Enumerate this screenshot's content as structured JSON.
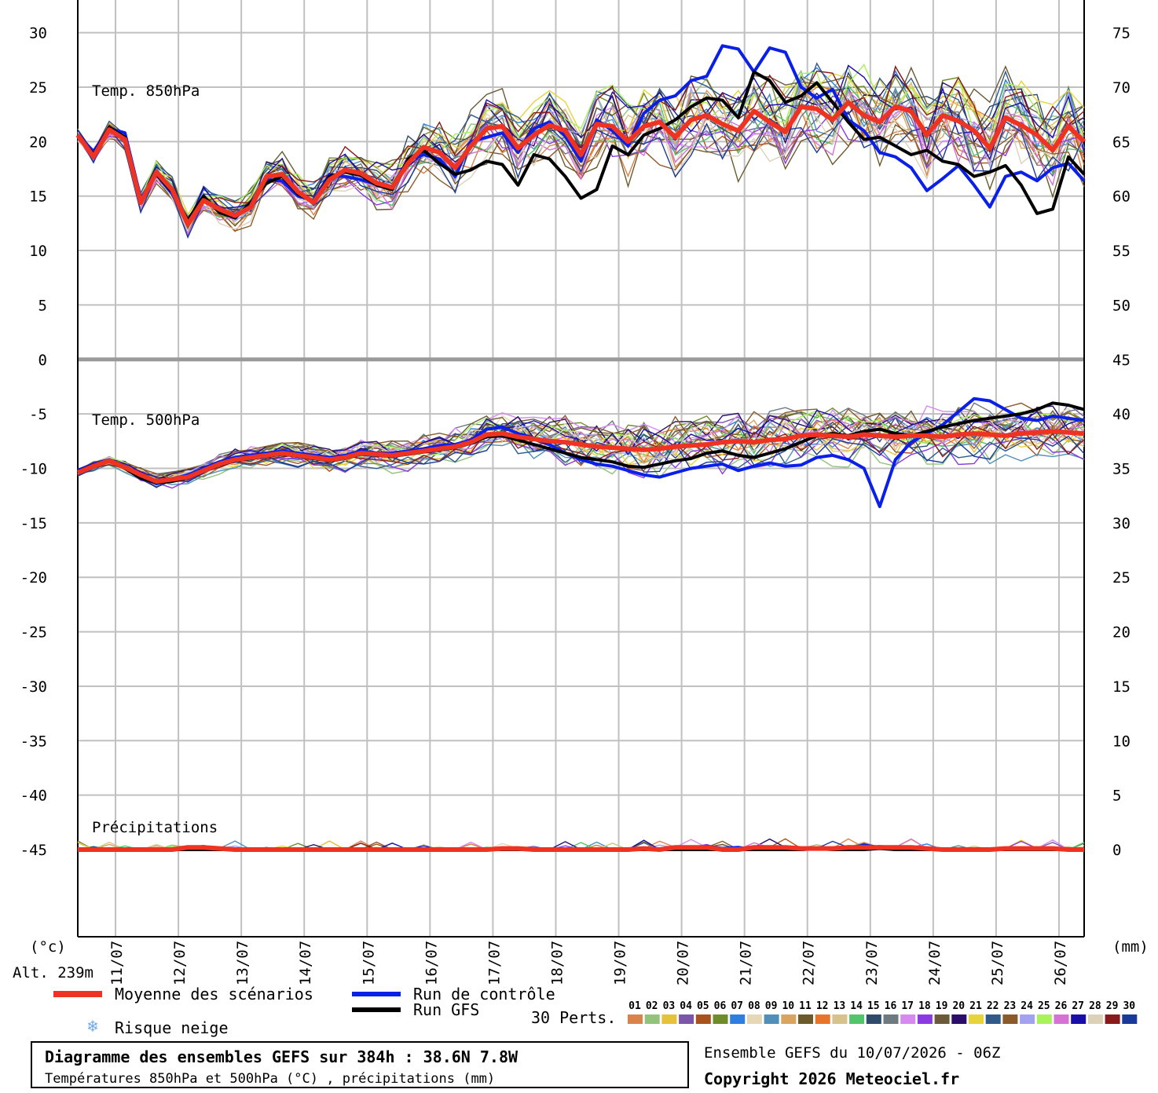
{
  "colors": {
    "mean": "#ee3322",
    "control": "#0a1fe8",
    "gfs": "#000000",
    "grid": "#c0c0c0",
    "grid_major": "#9a9a9a",
    "members": [
      "#d9824a",
      "#93c27a",
      "#e6c23a",
      "#7a55a8",
      "#a8531e",
      "#6f8c2a",
      "#2f7de0",
      "#e6d8b6",
      "#4f8fb8",
      "#d9a45f",
      "#6b5a2a",
      "#e8742a",
      "#d6c28a",
      "#52c46a",
      "#2f4a6a",
      "#6e7a80",
      "#d68aef",
      "#8a3ae0",
      "#6b5a3a",
      "#2a0e6a",
      "#e8d43a",
      "#2f5a8a",
      "#8a5a2a",
      "#a2a2f0",
      "#a8f25a",
      "#d672d6",
      "#1a0ea8",
      "#dcd2ba",
      "#8a1a1a",
      "#1a3a9a"
    ]
  },
  "chart_data": {
    "type": "line",
    "x_tick_labels": [
      "11/07",
      "12/07",
      "13/07",
      "14/07",
      "15/07",
      "16/07",
      "17/07",
      "18/07",
      "19/07",
      "20/07",
      "21/07",
      "22/07",
      "23/07",
      "24/07",
      "25/07",
      "26/07"
    ],
    "left_axis_unit": "(°c)",
    "right_axis_unit": "(mm)",
    "left_ticks": [
      30,
      25,
      20,
      15,
      10,
      5,
      0,
      -5,
      -10,
      -15,
      -20,
      -25,
      -30,
      -35,
      -40,
      -45
    ],
    "right_ticks": [
      75,
      70,
      65,
      60,
      55,
      50,
      45,
      40,
      35,
      30,
      25,
      20,
      15,
      10,
      5,
      0
    ],
    "left_ylim": [
      -53,
      33
    ],
    "right_ylim": [
      -8,
      78
    ],
    "x_range": [
      0,
      64
    ],
    "grid": true,
    "panels": [
      {
        "label": "Temp. 850hPa",
        "axis": "left",
        "spread": 2.5,
        "mean": [
          20.6,
          18.6,
          21.1,
          20.2,
          14.4,
          17.2,
          15.6,
          12.4,
          14.6,
          13.8,
          13.2,
          14.0,
          16.8,
          17.0,
          15.4,
          14.4,
          16.5,
          17.4,
          17.1,
          16.2,
          15.8,
          18.0,
          19.5,
          19.0,
          17.6,
          19.6,
          21.2,
          21.4,
          19.4,
          20.6,
          21.5,
          21.0,
          18.8,
          21.6,
          21.4,
          20.0,
          21.4,
          21.8,
          20.4,
          22.0,
          22.4,
          21.6,
          21.0,
          22.8,
          21.8,
          20.9,
          23.2,
          23.0,
          22.0,
          23.6,
          22.4,
          21.8,
          23.2,
          22.8,
          20.6,
          22.4,
          21.9,
          21.0,
          19.4,
          22.2,
          21.5,
          20.6,
          19.2,
          21.4,
          20.0
        ],
        "control": [
          20.6,
          19.1,
          21.2,
          20.8,
          14.8,
          17.0,
          15.2,
          12.6,
          14.8,
          13.6,
          13.0,
          14.2,
          16.5,
          16.4,
          15.0,
          14.6,
          17.0,
          16.8,
          16.5,
          16.1,
          15.9,
          18.3,
          18.8,
          18.4,
          16.8,
          20.0,
          20.4,
          20.8,
          19.0,
          21.2,
          21.8,
          20.5,
          18.2,
          22.0,
          21.0,
          19.6,
          22.6,
          23.8,
          24.2,
          25.6,
          26.0,
          28.8,
          28.5,
          26.4,
          28.6,
          28.2,
          25.0,
          24.0,
          24.8,
          22.0,
          21.0,
          19.0,
          18.6,
          17.6,
          15.5,
          16.6,
          17.8,
          16.0,
          14.0,
          16.8,
          17.2,
          16.4,
          17.6,
          18.0,
          16.4
        ],
        "gfs": [
          20.6,
          18.8,
          21.3,
          20.4,
          14.6,
          17.0,
          15.4,
          12.8,
          15.0,
          13.5,
          13.0,
          14.4,
          16.2,
          16.8,
          15.2,
          14.4,
          16.8,
          17.2,
          16.9,
          16.0,
          15.6,
          18.4,
          19.2,
          18.0,
          17.0,
          17.4,
          18.2,
          17.9,
          16.0,
          18.8,
          18.4,
          16.8,
          14.8,
          15.6,
          19.6,
          18.8,
          20.6,
          21.2,
          22.0,
          23.2,
          24.0,
          23.8,
          22.2,
          26.4,
          25.6,
          23.6,
          24.2,
          25.4,
          23.6,
          21.8,
          20.2,
          20.4,
          19.6,
          18.8,
          19.2,
          18.2,
          17.9,
          16.8,
          17.2,
          17.8,
          16.0,
          13.4,
          13.8,
          18.6,
          17.0
        ]
      },
      {
        "label": "Temp. 500hPa",
        "axis": "left",
        "spread": 1.5,
        "mean": [
          -10.4,
          -9.8,
          -9.3,
          -9.9,
          -10.6,
          -11.2,
          -11.0,
          -10.8,
          -10.2,
          -9.6,
          -9.2,
          -9.0,
          -8.8,
          -8.6,
          -8.8,
          -9.0,
          -9.2,
          -9.0,
          -8.6,
          -8.7,
          -8.8,
          -8.6,
          -8.4,
          -8.2,
          -8.0,
          -7.6,
          -6.9,
          -6.8,
          -7.1,
          -7.3,
          -7.5,
          -7.6,
          -7.8,
          -8.0,
          -8.1,
          -8.2,
          -8.3,
          -8.2,
          -8.0,
          -7.9,
          -7.8,
          -7.6,
          -7.5,
          -7.6,
          -7.4,
          -7.3,
          -7.0,
          -6.9,
          -7.0,
          -7.1,
          -6.9,
          -7.0,
          -7.1,
          -7.0,
          -7.0,
          -7.1,
          -6.9,
          -6.8,
          -6.9,
          -7.0,
          -6.8,
          -6.7,
          -6.6,
          -6.7,
          -6.8
        ],
        "control": [
          -10.2,
          -9.6,
          -9.2,
          -9.8,
          -10.8,
          -11.4,
          -11.0,
          -10.6,
          -10.0,
          -9.4,
          -9.0,
          -8.8,
          -8.6,
          -8.4,
          -8.6,
          -8.8,
          -9.0,
          -8.8,
          -8.4,
          -8.6,
          -8.6,
          -8.4,
          -8.2,
          -7.9,
          -7.8,
          -7.4,
          -6.4,
          -6.2,
          -6.8,
          -7.2,
          -7.8,
          -8.6,
          -9.2,
          -9.6,
          -9.8,
          -10.2,
          -10.6,
          -10.8,
          -10.4,
          -10.0,
          -9.8,
          -9.6,
          -10.2,
          -9.8,
          -9.5,
          -9.8,
          -9.7,
          -9.0,
          -8.8,
          -9.2,
          -10.0,
          -13.5,
          -9.2,
          -7.6,
          -6.8,
          -6.0,
          -4.8,
          -3.6,
          -3.8,
          -4.6,
          -5.4,
          -5.6,
          -5.2,
          -5.4,
          -5.6
        ],
        "gfs": [
          -10.3,
          -9.7,
          -9.3,
          -10.0,
          -10.9,
          -11.3,
          -11.2,
          -10.9,
          -10.3,
          -9.7,
          -9.3,
          -9.1,
          -8.9,
          -8.7,
          -8.9,
          -9.1,
          -9.3,
          -9.1,
          -8.7,
          -8.8,
          -8.9,
          -8.7,
          -8.5,
          -8.3,
          -8.1,
          -7.7,
          -7.1,
          -7.0,
          -7.4,
          -7.8,
          -8.2,
          -8.6,
          -9.0,
          -9.2,
          -9.4,
          -9.8,
          -9.9,
          -9.6,
          -9.3,
          -9.1,
          -8.6,
          -8.4,
          -8.8,
          -9.0,
          -8.6,
          -8.2,
          -7.6,
          -7.0,
          -6.8,
          -7.0,
          -6.6,
          -6.4,
          -6.8,
          -7.0,
          -6.6,
          -6.2,
          -5.9,
          -5.6,
          -5.4,
          -5.2,
          -5.0,
          -4.6,
          -4.0,
          -4.2,
          -4.6
        ]
      },
      {
        "label": "Précipitations",
        "axis": "right",
        "spread": 0.3,
        "mean": [
          0,
          0,
          0,
          0,
          0,
          0,
          0,
          0.2,
          0.2,
          0.1,
          0,
          0,
          0,
          0,
          0,
          0,
          0,
          0,
          0,
          0,
          0,
          0,
          0,
          0,
          0,
          0,
          0,
          0.1,
          0.1,
          0,
          0,
          0,
          0,
          0,
          0,
          0,
          0.1,
          0,
          0.2,
          0.2,
          0.2,
          0,
          0,
          0.2,
          0.2,
          0.2,
          0.1,
          0.1,
          0.1,
          0.2,
          0.2,
          0.2,
          0.2,
          0.2,
          0.1,
          0,
          0,
          0,
          0,
          0.1,
          0.1,
          0.1,
          0.1,
          0,
          0
        ],
        "control": [
          0,
          0,
          0,
          0,
          0,
          0,
          0,
          0,
          0,
          0,
          0,
          0,
          0,
          0,
          0,
          0,
          0,
          0,
          0,
          0,
          0,
          0,
          0,
          0,
          0,
          0,
          0,
          0,
          0,
          0,
          0,
          0,
          0,
          0,
          0,
          0,
          0,
          0,
          0.1,
          0.1,
          0.3,
          0.1,
          0.2,
          0,
          0,
          0,
          0,
          0.1,
          0.1,
          0,
          0.4,
          0.2,
          0,
          0,
          0,
          0,
          0,
          0,
          0,
          0.1,
          0.1,
          0.1,
          0,
          0,
          0
        ],
        "gfs": [
          0,
          0,
          0,
          0,
          0,
          0,
          0,
          0,
          0,
          0,
          0,
          0,
          0,
          0,
          0,
          0,
          0,
          0,
          0,
          0,
          0,
          0,
          0,
          0,
          0,
          0,
          0,
          0,
          0,
          0,
          0,
          0,
          0,
          0,
          0,
          0,
          0,
          0,
          0,
          0,
          0,
          0,
          0,
          0,
          0,
          0,
          0,
          0.1,
          0,
          0,
          0,
          0.1,
          0,
          0,
          0,
          0,
          0,
          0,
          0,
          0,
          0,
          0,
          0,
          0,
          0
        ]
      }
    ]
  },
  "labels": {
    "alt": "Alt. 239m",
    "snow": "Risque neige",
    "perts": "30 Perts.",
    "mean": "Moyenne des scénarios",
    "control": "Run de contrôle",
    "gfs": "Run GFS",
    "member_numbers": [
      "01",
      "02",
      "03",
      "04",
      "05",
      "06",
      "07",
      "08",
      "09",
      "10",
      "11",
      "12",
      "13",
      "14",
      "15",
      "16",
      "17",
      "18",
      "19",
      "20",
      "21",
      "22",
      "23",
      "24",
      "25",
      "26",
      "27",
      "28",
      "29",
      "30"
    ]
  },
  "title": {
    "main": "Diagramme des ensembles GEFS sur 384h : 38.6N 7.8W",
    "sub": "Températures 850hPa et 500hPa (°C) , précipitations (mm)"
  },
  "footer": {
    "run_info": "Ensemble GEFS du 10/07/2026 - 06Z",
    "copyright": "Copyright 2026 Meteociel.fr"
  }
}
